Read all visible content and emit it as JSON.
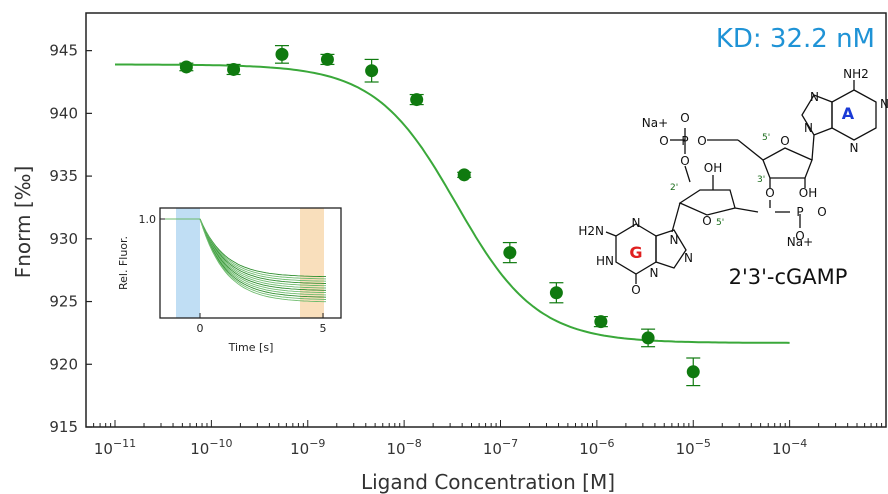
{
  "chart_data": {
    "type": "scatter",
    "annotation": "KD: 32.2 nM",
    "xlabel": "Ligand Concentration [M]",
    "ylabel": "Fnorm [‰]",
    "xscale": "log",
    "xlim": [
      5e-12,
      0.001
    ],
    "ylim": [
      915,
      948
    ],
    "yticks": [
      915,
      920,
      925,
      930,
      935,
      940,
      945
    ],
    "xticks_exp": [
      -11,
      -10,
      -9,
      -8,
      -7,
      -6,
      -5,
      -4
    ],
    "series": [
      {
        "x": [
          5.5e-11,
          1.7e-10,
          5.4e-10,
          1.6e-09,
          4.6e-09,
          1.35e-08,
          4.2e-08,
          1.25e-07,
          3.8e-07,
          1.1e-06,
          3.4e-06,
          1e-05
        ],
        "y": [
          943.7,
          943.5,
          944.7,
          944.3,
          943.4,
          941.1,
          935.1,
          928.9,
          925.7,
          923.4,
          922.1,
          919.4
        ],
        "err": [
          0.3,
          0.4,
          0.7,
          0.4,
          0.9,
          0.4,
          0.2,
          0.8,
          0.8,
          0.4,
          0.7,
          1.1
        ]
      }
    ],
    "fit": {
      "kd_nM": 32.2,
      "top": 943.9,
      "bottom": 921.7,
      "xlim": [
        1e-11,
        0.0001
      ]
    },
    "colors": {
      "data": "#0f7a0f",
      "fit": "#3aa83a",
      "annotation": "#1f93d6",
      "cold_region": "#b5d8f2",
      "hot_region": "#f8d9b0"
    },
    "inset": {
      "xlabel": "Time [s]",
      "ylabel": "Rel. Fluor.",
      "xticks": [
        "0",
        "5"
      ],
      "yticks": [
        "1.0"
      ]
    }
  },
  "molecule": {
    "name": "2'3'-cGAMP",
    "base_labels": [
      "G",
      "A"
    ],
    "atom_labels": [
      "NH2",
      "N",
      "N",
      "N",
      "N",
      "N",
      "O",
      "H2N",
      "N",
      "N",
      "N",
      "HN",
      "O",
      "OH",
      "OH",
      "O",
      "O",
      "O",
      "O",
      "O",
      "O",
      "O",
      "O",
      "P",
      "P",
      "Na+",
      "Na+"
    ],
    "position_labels": [
      "5'",
      "3'",
      "2'",
      "5'"
    ]
  }
}
